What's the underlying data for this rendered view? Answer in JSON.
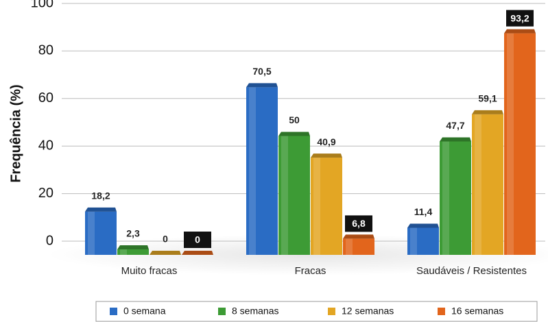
{
  "chart_data": {
    "type": "bar",
    "y_label": "Frequência (%)",
    "categories": [
      "Muito fracas",
      "Fracas",
      "Saudáveis / Resistentes"
    ],
    "series": [
      {
        "name": "0 semana",
        "color": "#2a6cc4",
        "values": [
          18.2,
          70.5,
          11.4
        ],
        "value_labels": [
          "18,2",
          "70,5",
          "11,4"
        ]
      },
      {
        "name": "8 semanas",
        "color": "#3d9b35",
        "values": [
          2.3,
          50,
          47.7
        ],
        "value_labels": [
          "2,3",
          "50",
          "47,7"
        ]
      },
      {
        "name": "12 semanas",
        "color": "#e3a624",
        "values": [
          0,
          40.9,
          59.1
        ],
        "value_labels": [
          "0",
          "40,9",
          "59,1"
        ]
      },
      {
        "name": "16 semanas",
        "color": "#e2651c",
        "values": [
          0,
          6.8,
          93.2
        ],
        "value_labels": [
          "0",
          "6,8",
          "93,2"
        ],
        "label_boxed": true
      }
    ],
    "ylim": [
      0,
      100
    ],
    "yticks": [
      0,
      20,
      40,
      60,
      80,
      100
    ],
    "grid": true
  }
}
